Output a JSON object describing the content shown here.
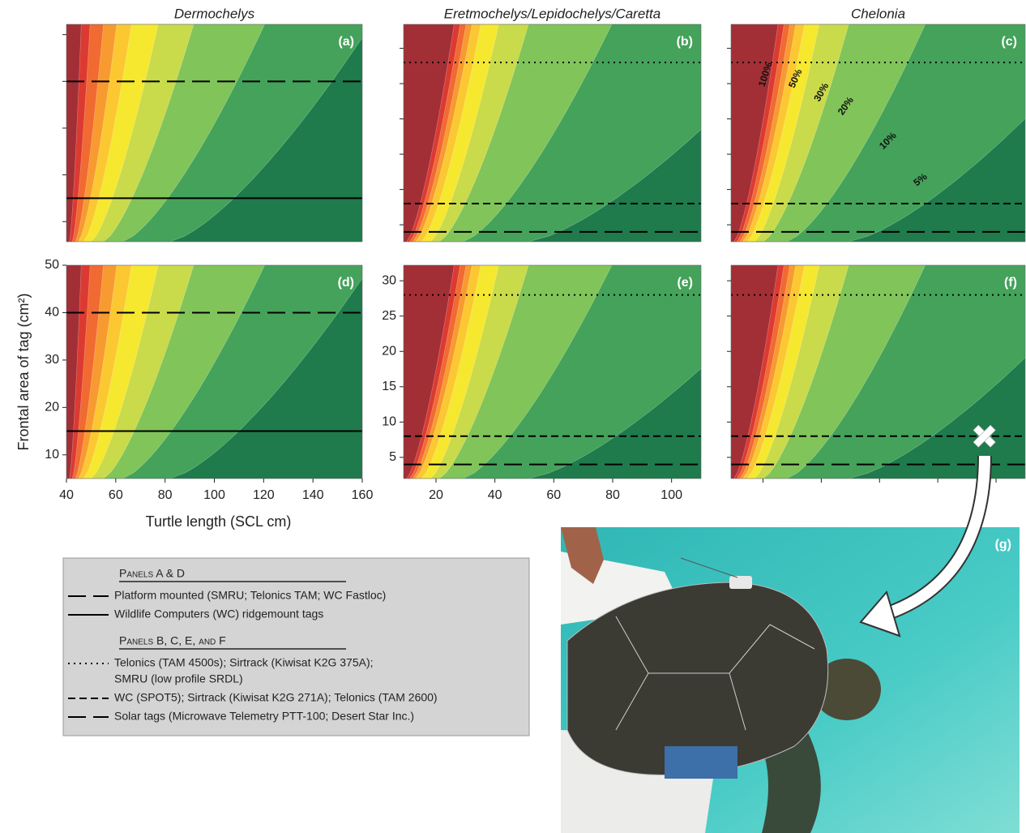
{
  "chart_data": {
    "type": "contour",
    "colors": [
      "#1f7a4c",
      "#44a25a",
      "#80c45a",
      "#c9da4b",
      "#f5e82f",
      "#fbc832",
      "#f79a30",
      "#f06a32",
      "#dc3a31",
      "#a22f36"
    ],
    "line_color": "#000000",
    "panels": [
      {
        "title": "Dermochelys",
        "label": "(a)",
        "xlim": [
          40,
          160
        ],
        "ylim": [
          5.7,
          52.2
        ],
        "yticks": [
          10,
          20,
          30,
          40,
          50
        ],
        "tick_labels": false,
        "lines": [
          {
            "style": "long-dash",
            "y": 40
          },
          {
            "style": "solid",
            "y": 15
          }
        ]
      },
      {
        "title": "Eretmochelys/Lepidochelys/Caretta",
        "label": "(b)",
        "xlim": [
          9,
          110
        ],
        "ylim": [
          2.6,
          33.4
        ],
        "yticks": [
          5,
          10,
          15,
          20,
          25,
          30
        ],
        "tick_labels": false,
        "lines": [
          {
            "style": "dotted",
            "y": 28
          },
          {
            "style": "dashed",
            "y": 8
          },
          {
            "style": "long-dash",
            "y": 4
          }
        ]
      },
      {
        "title": "Chelonia",
        "label": "(c)",
        "xlim": [
          9,
          110
        ],
        "ylim": [
          2.6,
          33.4
        ],
        "yticks": [
          5,
          10,
          15,
          20,
          25,
          30
        ],
        "tick_labels": false,
        "lines": [
          {
            "style": "dotted",
            "y": 28
          },
          {
            "style": "dashed",
            "y": 8
          },
          {
            "style": "long-dash",
            "y": 4
          }
        ],
        "contour_labels": [
          "100%",
          "50%",
          "30%",
          "20%",
          "10%",
          "5%"
        ]
      },
      {
        "label": "(d)",
        "xlim": [
          40,
          160
        ],
        "ylim": [
          5,
          50
        ],
        "xticks": [
          40,
          60,
          80,
          100,
          120,
          140,
          160
        ],
        "yticks": [
          10,
          20,
          30,
          40,
          50
        ],
        "tick_labels": true,
        "xlabel": "Turtle length (SCL cm)",
        "ylabel": "Frontal area of tag (cm²)",
        "lines": [
          {
            "style": "long-dash",
            "y": 40
          },
          {
            "style": "solid",
            "y": 15
          }
        ]
      },
      {
        "label": "(e)",
        "xlim": [
          9,
          110
        ],
        "ylim": [
          2,
          32.2
        ],
        "xticks": [
          20,
          40,
          60,
          80,
          100
        ],
        "yticks": [
          5,
          10,
          15,
          20,
          25,
          30
        ],
        "tick_labels": true,
        "lines": [
          {
            "style": "dotted",
            "y": 28
          },
          {
            "style": "dashed",
            "y": 8
          },
          {
            "style": "long-dash",
            "y": 4
          }
        ]
      },
      {
        "label": "(f)",
        "xlim": [
          9,
          110
        ],
        "ylim": [
          2,
          32.2
        ],
        "xticks": [
          20,
          40,
          60,
          80,
          100
        ],
        "yticks": [
          5,
          10,
          15,
          20,
          25,
          30
        ],
        "tick_labels": false,
        "lines": [
          {
            "style": "dotted",
            "y": 28
          },
          {
            "style": "dashed",
            "y": 8
          },
          {
            "style": "long-dash",
            "y": 4
          }
        ],
        "marker": {
          "x": 96,
          "y": 8
        }
      }
    ]
  },
  "legend": {
    "groups": [
      {
        "heading": "Panels A & D",
        "entries": [
          {
            "style": "long-dash",
            "text": [
              "Platform mounted (SMRU; Telonics TAM; WC Fastloc)"
            ]
          },
          {
            "style": "solid",
            "text": [
              "Wildlife Computers (WC) ridgemount tags"
            ]
          }
        ]
      },
      {
        "heading": "Panels B, C, E, and F",
        "entries": [
          {
            "style": "dotted",
            "text": [
              "Telonics (TAM 4500s); Sirtrack (Kiwisat K2G 375A);",
              "SMRU (low profile SRDL)"
            ]
          },
          {
            "style": "dashed",
            "text": [
              "WC (SPOT5); Sirtrack (Kiwisat K2G 271A); Telonics (TAM 2600)"
            ]
          },
          {
            "style": "long-dash",
            "text": [
              "Solar tags (Microwave Telemetry PTT-100; Desert Star Inc.)"
            ]
          }
        ]
      }
    ]
  },
  "photo": {
    "label": "(g)"
  }
}
